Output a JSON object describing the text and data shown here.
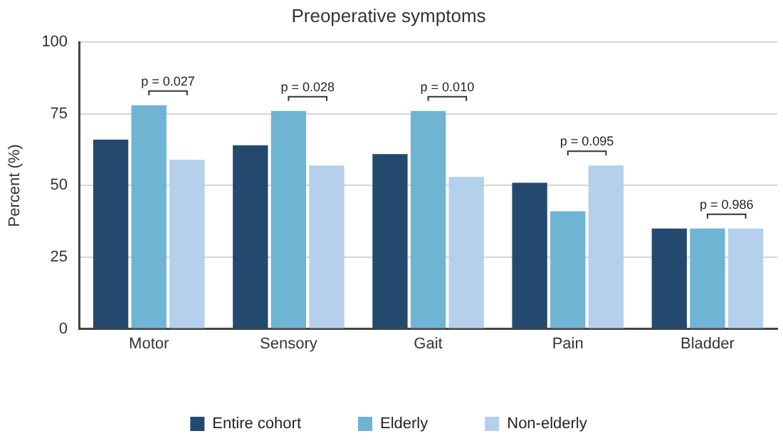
{
  "chart_data": {
    "type": "bar",
    "title": "Preoperative symptoms",
    "ylabel": "Percent (%)",
    "categories": [
      "Motor",
      "Sensory",
      "Gait",
      "Pain",
      "Bladder"
    ],
    "series": [
      {
        "name": "Entire cohort",
        "color": "#234a6e",
        "values": [
          66,
          64,
          61,
          51,
          35
        ]
      },
      {
        "name": "Elderly",
        "color": "#6fb4d3",
        "values": [
          78,
          76,
          76,
          41,
          35
        ]
      },
      {
        "name": "Non-elderly",
        "color": "#b4d0ea",
        "values": [
          59,
          57,
          53,
          57,
          35
        ]
      }
    ],
    "ylim": [
      0,
      100
    ],
    "yticks": [
      0,
      25,
      50,
      75,
      100
    ],
    "grid": "y",
    "legend": "bottom",
    "annotations": [
      "p = 0.027",
      "p = 0.028",
      "p = 0.010",
      "p = 0.095",
      "p = 0.986"
    ]
  }
}
